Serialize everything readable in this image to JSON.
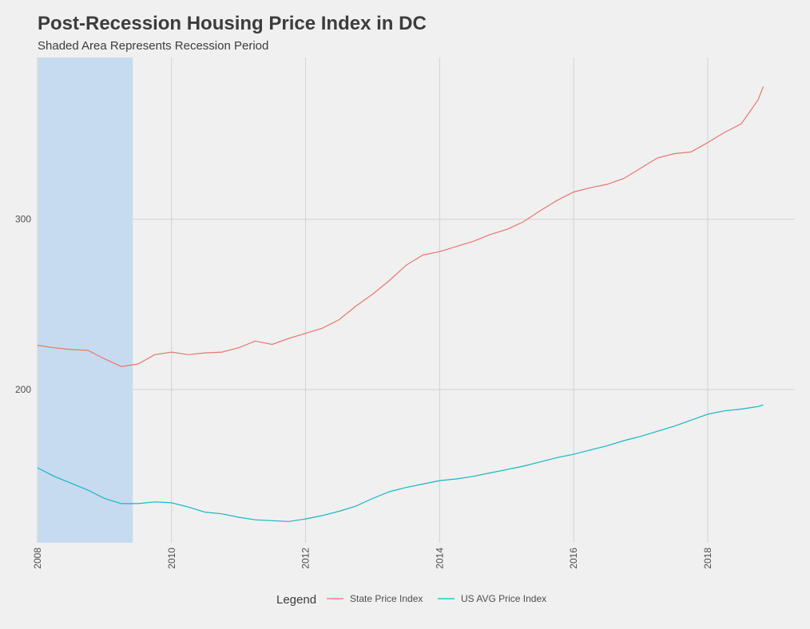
{
  "chart_data": {
    "type": "line",
    "title": "Post-Recession Housing Price Index in DC",
    "subtitle": "Shaded Area Represents Recession Period",
    "xlabel": "",
    "ylabel": "",
    "x_ticks": [
      "2008",
      "2010",
      "2012",
      "2014",
      "2016",
      "2018"
    ],
    "y_ticks": [
      "200",
      "300"
    ],
    "xlim": [
      2008.0,
      2019.3
    ],
    "ylim": [
      110,
      395
    ],
    "grid": true,
    "legend": {
      "position": "bottom",
      "title": "Legend",
      "entries": [
        "State Price Index",
        "US AVG Price Index"
      ]
    },
    "shaded_region": {
      "label": "Recession Period",
      "x_start": 2008.0,
      "x_end": 2009.42,
      "color": "#c6dbef"
    },
    "series": [
      {
        "name": "State Price Index",
        "color": "#e8776d",
        "x": [
          2008.0,
          2008.25,
          2008.5,
          2008.75,
          2009.0,
          2009.25,
          2009.5,
          2009.75,
          2010.0,
          2010.25,
          2010.5,
          2010.75,
          2011.0,
          2011.25,
          2011.5,
          2011.75,
          2012.0,
          2012.25,
          2012.5,
          2012.75,
          2013.0,
          2013.25,
          2013.5,
          2013.75,
          2014.0,
          2014.25,
          2014.5,
          2014.75,
          2015.0,
          2015.25,
          2015.5,
          2015.75,
          2016.0,
          2016.25,
          2016.5,
          2016.75,
          2017.0,
          2017.25,
          2017.5,
          2017.75,
          2018.0,
          2018.25,
          2018.5,
          2018.75,
          2018.83
        ],
        "values": [
          226,
          224.5,
          223.5,
          223,
          218,
          213.5,
          215,
          220.5,
          222,
          220.5,
          221.5,
          222,
          224.5,
          228.5,
          226.5,
          230,
          233,
          236,
          241,
          249,
          256,
          264,
          273,
          279,
          281,
          284,
          287,
          291,
          294,
          298.5,
          305,
          311,
          316,
          318.5,
          320.5,
          324,
          330,
          336,
          338.5,
          339.5,
          345,
          351,
          356,
          370,
          378
        ]
      },
      {
        "name": "US AVG Price Index",
        "color": "#17b6c1",
        "x": [
          2008.0,
          2008.25,
          2008.5,
          2008.75,
          2009.0,
          2009.25,
          2009.5,
          2009.75,
          2010.0,
          2010.25,
          2010.5,
          2010.75,
          2011.0,
          2011.25,
          2011.5,
          2011.75,
          2012.0,
          2012.25,
          2012.5,
          2012.75,
          2013.0,
          2013.25,
          2013.5,
          2013.75,
          2014.0,
          2014.25,
          2014.5,
          2014.75,
          2015.0,
          2015.25,
          2015.5,
          2015.75,
          2016.0,
          2016.25,
          2016.5,
          2016.75,
          2017.0,
          2017.25,
          2017.5,
          2017.75,
          2018.0,
          2018.25,
          2018.5,
          2018.75,
          2018.83
        ],
        "values": [
          154,
          149,
          145,
          141,
          136,
          133,
          133,
          134,
          133.5,
          131,
          128,
          127,
          125,
          123.5,
          123,
          122.5,
          124,
          126,
          128.5,
          131.5,
          136,
          140,
          142.5,
          144.5,
          146.5,
          147.5,
          149,
          151,
          153,
          155,
          157.5,
          160,
          162,
          164.5,
          167,
          170,
          172.5,
          175.5,
          178.5,
          182,
          185.5,
          187.5,
          188.5,
          190,
          191
        ]
      }
    ]
  }
}
